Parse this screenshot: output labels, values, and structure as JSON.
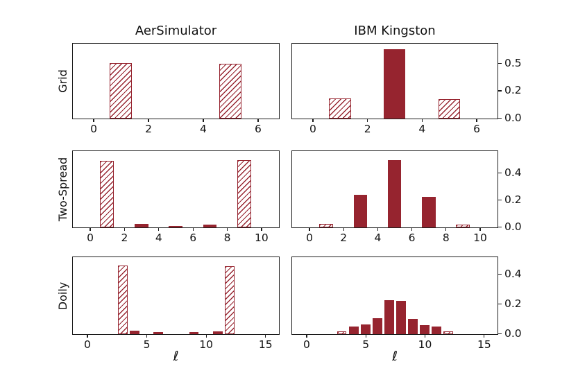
{
  "figure": {
    "column_titles": [
      {
        "label": "AerSimulator"
      },
      {
        "label": "IBM Kingston"
      }
    ],
    "row_labels": [
      "Grid",
      "Two-Spread",
      "Doily"
    ],
    "xlabel": "ℓ",
    "bar_color": "#96242f",
    "axis_color": "#1c1c1c",
    "hatch_pattern": "///",
    "legend": "none"
  },
  "chart_data": [
    {
      "type": "bar",
      "row": 0,
      "col": 0,
      "row_label": "Grid",
      "column": "AerSimulator",
      "x": [
        1,
        5
      ],
      "values": [
        0.505,
        0.5
      ],
      "hatched": [
        true,
        true
      ],
      "xlim": [
        -0.75,
        6.75
      ],
      "ylim": [
        0,
        0.675
      ],
      "xticks": [
        0,
        2,
        4,
        6
      ],
      "yticks": [],
      "grid": false
    },
    {
      "type": "bar",
      "row": 0,
      "col": 1,
      "row_label": "Grid",
      "column": "IBM Kingston",
      "x": [
        1,
        3,
        5
      ],
      "values": [
        0.18,
        0.63,
        0.175
      ],
      "hatched": [
        true,
        false,
        true
      ],
      "xlim": [
        -0.75,
        6.75
      ],
      "ylim": [
        0,
        0.675
      ],
      "xticks": [
        0,
        2,
        4,
        6
      ],
      "yticks": [
        {
          "v": 0.5,
          "label": "0.5"
        },
        {
          "v": 0.25,
          "label": "0.2"
        },
        {
          "v": 0.0,
          "label": "0.0"
        }
      ],
      "grid": false
    },
    {
      "type": "bar",
      "row": 1,
      "col": 0,
      "row_label": "Two-Spread",
      "column": "AerSimulator",
      "x": [
        1,
        3,
        5,
        7,
        9
      ],
      "values": [
        0.49,
        0.025,
        0.012,
        0.02,
        0.495
      ],
      "hatched": [
        true,
        false,
        false,
        false,
        true
      ],
      "xlim": [
        -1,
        11
      ],
      "ylim": [
        0,
        0.56
      ],
      "xticks": [
        0,
        2,
        4,
        6,
        8,
        10
      ],
      "yticks": [],
      "grid": false
    },
    {
      "type": "bar",
      "row": 1,
      "col": 1,
      "row_label": "Two-Spread",
      "column": "IBM Kingston",
      "x": [
        1,
        3,
        5,
        7,
        9
      ],
      "values": [
        0.027,
        0.24,
        0.5,
        0.225,
        0.02
      ],
      "hatched": [
        true,
        false,
        false,
        false,
        true
      ],
      "xlim": [
        -1,
        11
      ],
      "ylim": [
        0,
        0.56
      ],
      "xticks": [
        0,
        2,
        4,
        6,
        8,
        10
      ],
      "yticks": [
        {
          "v": 0.4,
          "label": "0.4"
        },
        {
          "v": 0.2,
          "label": "0.2"
        },
        {
          "v": 0.0,
          "label": "0.0"
        }
      ],
      "grid": false
    },
    {
      "type": "bar",
      "row": 2,
      "col": 0,
      "row_label": "Doily",
      "column": "AerSimulator",
      "x": [
        3,
        4,
        6,
        9,
        11,
        12
      ],
      "values": [
        0.46,
        0.022,
        0.015,
        0.013,
        0.02,
        0.455
      ],
      "hatched": [
        true,
        false,
        false,
        false,
        false,
        true
      ],
      "xlim": [
        -1.2,
        16.1
      ],
      "ylim": [
        0,
        0.51
      ],
      "xticks": [
        0,
        5,
        10,
        15
      ],
      "yticks": [],
      "grid": false
    },
    {
      "type": "bar",
      "row": 2,
      "col": 1,
      "row_label": "Doily",
      "column": "IBM Kingston",
      "x": [
        3,
        4,
        5,
        6,
        7,
        8,
        9,
        10,
        11,
        12
      ],
      "values": [
        0.018,
        0.053,
        0.064,
        0.105,
        0.225,
        0.22,
        0.103,
        0.06,
        0.052,
        0.018
      ],
      "hatched": [
        true,
        false,
        false,
        false,
        false,
        false,
        false,
        false,
        false,
        true
      ],
      "xlim": [
        -1.2,
        16.1
      ],
      "ylim": [
        0,
        0.51
      ],
      "xticks": [
        0,
        5,
        10,
        15
      ],
      "yticks": [
        {
          "v": 0.4,
          "label": "0.4"
        },
        {
          "v": 0.2,
          "label": "0.2"
        },
        {
          "v": 0.0,
          "label": "0.0"
        }
      ],
      "grid": false
    }
  ]
}
